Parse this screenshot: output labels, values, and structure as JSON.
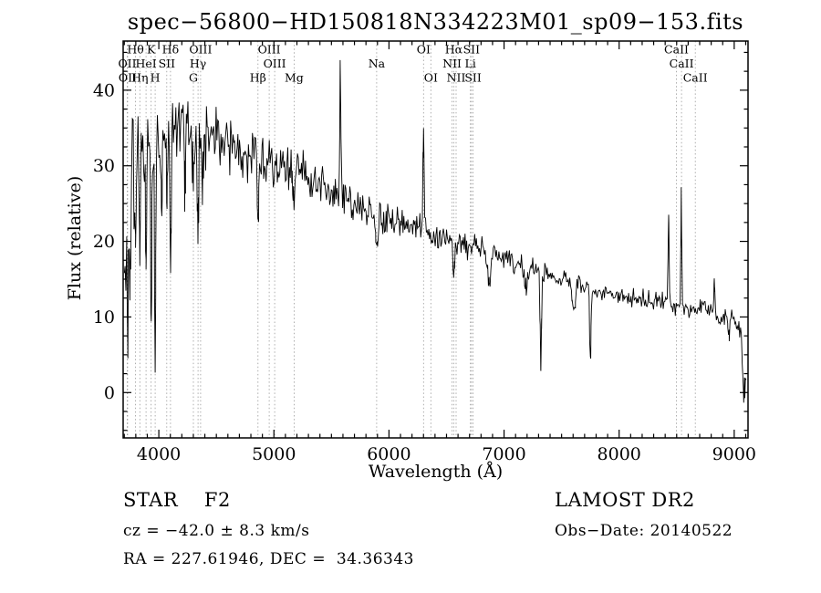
{
  "title": "spec−56800−HD150818N334223M01_sp09−153.fits",
  "annotations": {
    "classification": "STAR    F2",
    "survey": "LAMOST DR2",
    "cz": "cz = −42.0 ± 8.3 km/s",
    "obs_date": "Obs−Date: 20140522",
    "coords": "RA = 227.61946, DEC =  34.36343"
  },
  "chart_data": {
    "type": "line",
    "title": "spec−56800−HD150818N334223M01_sp09−153.fits",
    "xlabel": "Wavelength (Å)",
    "ylabel": "Flux (relative)",
    "xlim": [
      3690,
      9120
    ],
    "ylim": [
      -6,
      46.5
    ],
    "x_ticks": [
      4000,
      5000,
      6000,
      7000,
      8000,
      9000
    ],
    "y_ticks": [
      0,
      10,
      20,
      30,
      40
    ],
    "x_minor_step": 100,
    "y_minor_step": 2.5,
    "grid": false,
    "line_color": "#000000",
    "marker_line_color": "#9a9a9a",
    "seed": 7,
    "continuum": [
      [
        3700,
        14
      ],
      [
        3720,
        22
      ],
      [
        3750,
        27
      ],
      [
        3800,
        31
      ],
      [
        3850,
        32
      ],
      [
        3900,
        33
      ],
      [
        4000,
        33.5
      ],
      [
        4100,
        34
      ],
      [
        4200,
        34.5
      ],
      [
        4300,
        34
      ],
      [
        4400,
        34
      ],
      [
        4500,
        33.5
      ],
      [
        4600,
        33
      ],
      [
        4700,
        32.5
      ],
      [
        4800,
        31.5
      ],
      [
        4900,
        30.5
      ],
      [
        5000,
        30
      ],
      [
        5100,
        29.5
      ],
      [
        5200,
        29
      ],
      [
        5300,
        28.5
      ],
      [
        5400,
        28
      ],
      [
        5500,
        27
      ],
      [
        5600,
        26
      ],
      [
        5700,
        25
      ],
      [
        5800,
        24
      ],
      [
        5900,
        23.2
      ],
      [
        6000,
        23
      ],
      [
        6100,
        22.5
      ],
      [
        6200,
        22
      ],
      [
        6300,
        21.5
      ],
      [
        6400,
        21
      ],
      [
        6500,
        20.5
      ],
      [
        6600,
        19.8
      ],
      [
        6700,
        19.3
      ],
      [
        6800,
        19
      ],
      [
        6900,
        18.2
      ],
      [
        7000,
        17.6
      ],
      [
        7100,
        17
      ],
      [
        7200,
        16.4
      ],
      [
        7300,
        16
      ],
      [
        7400,
        15.4
      ],
      [
        7500,
        15
      ],
      [
        7600,
        14.4
      ],
      [
        7700,
        14
      ],
      [
        7800,
        13.5
      ],
      [
        7900,
        13.2
      ],
      [
        8000,
        12.9
      ],
      [
        8100,
        12.6
      ],
      [
        8200,
        12.3
      ],
      [
        8300,
        12
      ],
      [
        8400,
        11.8
      ],
      [
        8500,
        11.5
      ],
      [
        8600,
        11.2
      ],
      [
        8700,
        11
      ],
      [
        8800,
        10.6
      ],
      [
        8900,
        10.2
      ],
      [
        9000,
        9.5
      ],
      [
        9060,
        8.5
      ],
      [
        9100,
        3
      ]
    ],
    "noise_profile": [
      [
        3700,
        7
      ],
      [
        3780,
        5
      ],
      [
        3900,
        3.2
      ],
      [
        4000,
        3
      ],
      [
        4400,
        2.6
      ],
      [
        4800,
        2.1
      ],
      [
        5200,
        1.8
      ],
      [
        5600,
        1.5
      ],
      [
        6000,
        1.3
      ],
      [
        6500,
        1.1
      ],
      [
        7000,
        0.95
      ],
      [
        7500,
        0.85
      ],
      [
        8000,
        0.8
      ],
      [
        8500,
        0.85
      ],
      [
        9000,
        0.9
      ],
      [
        9120,
        1.2
      ]
    ],
    "features": [
      {
        "center": 3726,
        "amp": -12,
        "width": 5
      },
      {
        "center": 3750,
        "amp": -15,
        "width": 5
      },
      {
        "center": 3798,
        "amp": -13,
        "width": 5
      },
      {
        "center": 3835,
        "amp": -14,
        "width": 5
      },
      {
        "center": 3889,
        "amp": -16,
        "width": 5
      },
      {
        "center": 3934,
        "amp": -22,
        "width": 6
      },
      {
        "center": 3968,
        "amp": -30,
        "width": 5
      },
      {
        "center": 4026,
        "amp": -8,
        "width": 5
      },
      {
        "center": 4068,
        "amp": -8,
        "width": 5
      },
      {
        "center": 4102,
        "amp": -18,
        "width": 6
      },
      {
        "center": 4227,
        "amp": -8,
        "width": 5
      },
      {
        "center": 4300,
        "amp": -6,
        "width": 8
      },
      {
        "center": 4340,
        "amp": -14,
        "width": 6
      },
      {
        "center": 4383,
        "amp": -7,
        "width": 5
      },
      {
        "center": 4861,
        "amp": -8,
        "width": 6
      },
      {
        "center": 5167,
        "amp": -4,
        "width": 8
      },
      {
        "center": 5577,
        "amp": 17,
        "width": 4
      },
      {
        "center": 5893,
        "amp": -3.5,
        "width": 8
      },
      {
        "center": 6300,
        "amp": 15.5,
        "width": 4
      },
      {
        "center": 6563,
        "amp": -4.5,
        "width": 8
      },
      {
        "center": 6870,
        "amp": -4.5,
        "width": 12
      },
      {
        "center": 7190,
        "amp": -2.5,
        "width": 15
      },
      {
        "center": 7320,
        "amp": -12,
        "width": 6
      },
      {
        "center": 7605,
        "amp": -3.5,
        "width": 15
      },
      {
        "center": 7750,
        "amp": -10,
        "width": 6
      },
      {
        "center": 8430,
        "amp": 13,
        "width": 4
      },
      {
        "center": 8540,
        "amp": 15,
        "width": 4
      },
      {
        "center": 8827,
        "amp": 5,
        "width": 4
      },
      {
        "center": 8950,
        "amp": -3,
        "width": 6
      },
      {
        "center": 9080,
        "amp": -5,
        "width": 12
      }
    ],
    "spectral_lines": [
      {
        "label": "Hθ",
        "wavelength": 3798.0,
        "row": 1
      },
      {
        "label": "K",
        "wavelength": 3933.7,
        "row": 1
      },
      {
        "label": "Hδ",
        "wavelength": 4101.7,
        "row": 1
      },
      {
        "label": "OIII",
        "wavelength": 4363.2,
        "row": 1
      },
      {
        "label": "OIII",
        "wavelength": 4958.9,
        "row": 1
      },
      {
        "label": "OI",
        "wavelength": 6300.3,
        "row": 1
      },
      {
        "label": "Hα",
        "wavelength": 6562.8,
        "row": 1
      },
      {
        "label": "SII",
        "wavelength": 6716.4,
        "row": 1
      },
      {
        "label": "CaII",
        "wavelength": 8498.0,
        "row": 1
      },
      {
        "label": "OII",
        "wavelength": 3726.0,
        "row": 2
      },
      {
        "label": "HeI",
        "wavelength": 3888.6,
        "row": 2
      },
      {
        "label": "SII",
        "wavelength": 4068.6,
        "row": 2
      },
      {
        "label": "Hγ",
        "wavelength": 4340.5,
        "row": 2
      },
      {
        "label": "OIII",
        "wavelength": 5006.8,
        "row": 2
      },
      {
        "label": "Na",
        "wavelength": 5892.9,
        "row": 2
      },
      {
        "label": "NII",
        "wavelength": 6548.1,
        "row": 2
      },
      {
        "label": "Li",
        "wavelength": 6707.8,
        "row": 2
      },
      {
        "label": "CaII",
        "wavelength": 8542.1,
        "row": 2
      },
      {
        "label": "OII",
        "wavelength": 3728.8,
        "row": 3
      },
      {
        "label": "Hη",
        "wavelength": 3835.4,
        "row": 3
      },
      {
        "label": "H",
        "wavelength": 3968.5,
        "row": 3
      },
      {
        "label": "G",
        "wavelength": 4300.4,
        "row": 3
      },
      {
        "label": "Hβ",
        "wavelength": 4861.3,
        "row": 3
      },
      {
        "label": "Mg",
        "wavelength": 5175.4,
        "row": 3
      },
      {
        "label": "OI",
        "wavelength": 6363.8,
        "row": 3
      },
      {
        "label": "NII",
        "wavelength": 6583.5,
        "row": 3
      },
      {
        "label": "SII",
        "wavelength": 6730.8,
        "row": 3
      },
      {
        "label": "CaII",
        "wavelength": 8662.1,
        "row": 3
      }
    ]
  }
}
